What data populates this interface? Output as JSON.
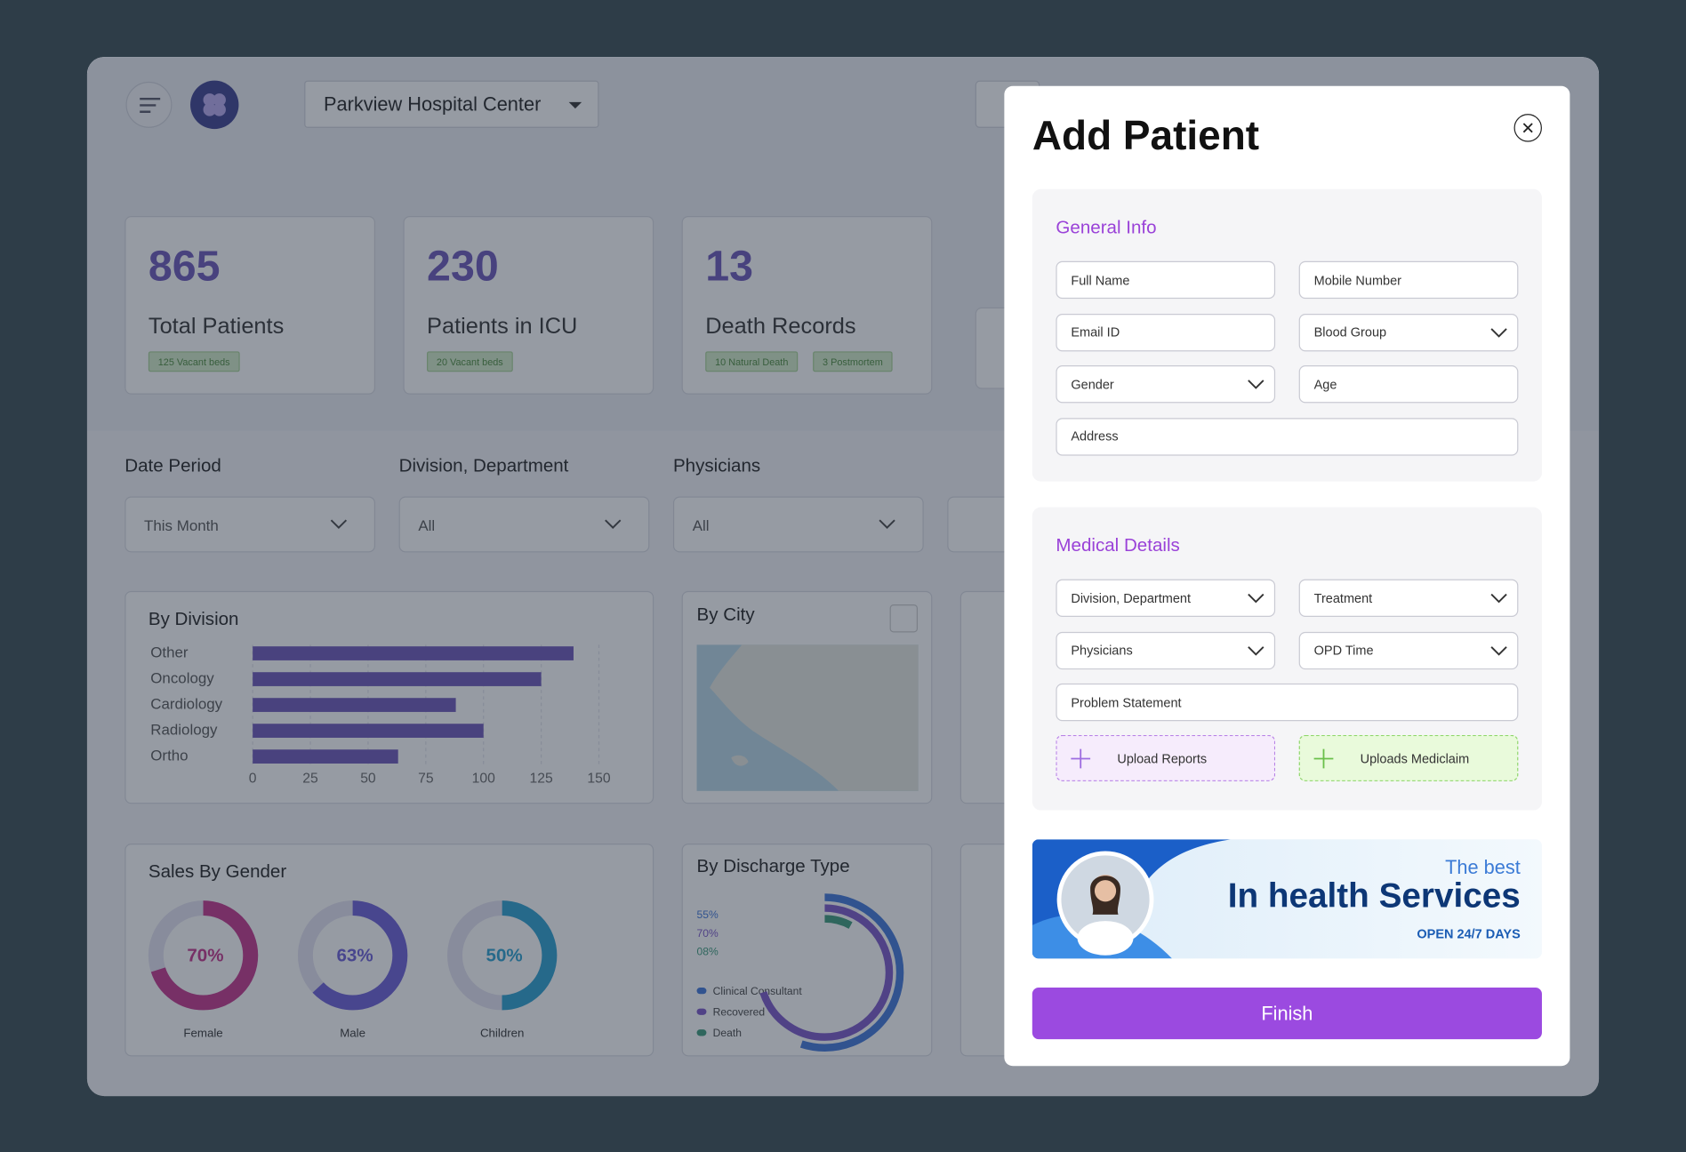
{
  "header": {
    "hospital": "Parkview Hospital Center"
  },
  "stats": [
    {
      "value": "865",
      "label": "Total Patients",
      "tags": [
        "125 Vacant beds"
      ]
    },
    {
      "value": "230",
      "label": "Patients in ICU",
      "tags": [
        "20 Vacant beds"
      ]
    },
    {
      "value": "13",
      "label": "Death Records",
      "tags": [
        "10 Natural Death",
        "3 Postmortem"
      ]
    }
  ],
  "filters": [
    {
      "label": "Date Period",
      "value": "This Month"
    },
    {
      "label": "Division, Department",
      "value": "All"
    },
    {
      "label": "Physicians",
      "value": "All"
    }
  ],
  "by_division": {
    "title": "By Division",
    "categories": [
      "Other",
      "Oncology",
      "Cardiology",
      "Radiology",
      "Ortho"
    ],
    "values": [
      139,
      125,
      88,
      100,
      63
    ],
    "color": "#6b55b8",
    "xlim": [
      0,
      150
    ],
    "xticks": [
      0,
      25,
      50,
      75,
      100,
      125,
      150
    ]
  },
  "by_city": {
    "title": "By City"
  },
  "by_gender": {
    "title": "Sales By Gender",
    "categories": [
      "Female",
      "Male",
      "Children"
    ],
    "values": [
      70,
      63,
      50
    ],
    "value_labels": [
      "70%",
      "63%",
      "50%"
    ],
    "colors": [
      "#c4338a",
      "#6a5cd6",
      "#2a9fd0"
    ]
  },
  "by_discharge": {
    "title": "By Discharge Type",
    "categories": [
      "Clinical Consultant",
      "Recovered",
      "Death"
    ],
    "values": [
      55,
      70,
      8
    ],
    "value_labels": [
      "55%",
      "70%",
      "08%"
    ],
    "colors": [
      "#3f76d8",
      "#7a55c8",
      "#3a9a7a"
    ]
  },
  "modal": {
    "title": "Add Patient",
    "general_info": {
      "title": "General Info",
      "fields": [
        {
          "label": "Full Name",
          "dropdown": false
        },
        {
          "label": "Mobile Number",
          "dropdown": false
        },
        {
          "label": "Email ID",
          "dropdown": false
        },
        {
          "label": "Blood Group",
          "dropdown": true
        },
        {
          "label": "Gender",
          "dropdown": true
        },
        {
          "label": "Age",
          "dropdown": false
        },
        {
          "label": "Address",
          "dropdown": false,
          "wide": true
        }
      ]
    },
    "medical_details": {
      "title": "Medical Details",
      "fields": [
        {
          "label": "Division, Department",
          "dropdown": true
        },
        {
          "label": "Treatment",
          "dropdown": true
        },
        {
          "label": "Physicians",
          "dropdown": true
        },
        {
          "label": "OPD Time",
          "dropdown": true
        },
        {
          "label": "Problem Statement",
          "dropdown": false,
          "wide": true
        }
      ],
      "uploads": [
        "Upload Reports",
        "Uploads Mediclaim"
      ]
    },
    "banner": {
      "kicker": "The best",
      "headline": "In health Services",
      "note": "OPEN 24/7 DAYS"
    },
    "button": "Finish"
  }
}
